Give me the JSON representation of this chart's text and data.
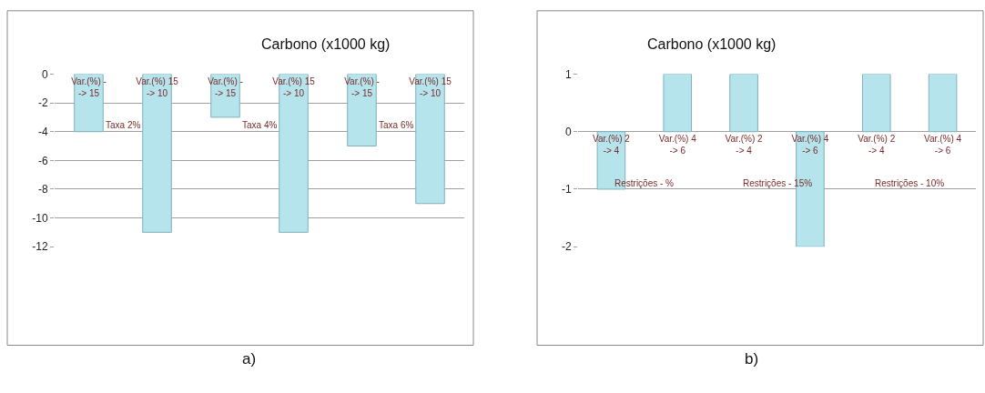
{
  "chart_data": [
    {
      "type": "bar",
      "title": "Carbono (x1000 kg)",
      "xlabel": "a)",
      "categories": [
        "Var.(%) - -> 15",
        "Var.(%) 15 -> 10",
        "Var.(%) - -> 15",
        "Var.(%) 15 -> 10",
        "Var.(%) - -> 15",
        "Var.(%) 15 -> 10"
      ],
      "values": [
        -4,
        -11,
        -3,
        -11,
        -5,
        -9
      ],
      "color": "#b5e4ec",
      "annotations": [
        "Taxa 2%",
        "Taxa 4%",
        "Taxa 6%"
      ],
      "ylim": [
        -12,
        0
      ],
      "yticks": [
        -12,
        -10,
        -8,
        -6,
        -4,
        -2,
        0
      ],
      "grid": "y",
      "legend": false
    },
    {
      "type": "bar",
      "title": "Carbono (x1000 kg)",
      "xlabel": "b)",
      "categories": [
        "Var.(%) 2 -> 4",
        "Var.(%) 4 -> 6",
        "Var.(%) 2 -> 4",
        "Var.(%) 4 -> 6",
        "Var.(%) 2 -> 4",
        "Var.(%) 4 -> 6"
      ],
      "values": [
        -1,
        1,
        1,
        -2,
        1,
        1
      ],
      "color": "#b5e4ec",
      "annotations": [
        "Restrições - %",
        "Restrições - 15%",
        "Restrições - 10%"
      ],
      "ylim": [
        -2,
        1
      ],
      "yticks": [
        -2,
        -1,
        0,
        1
      ],
      "grid": "y",
      "legend": false
    }
  ]
}
